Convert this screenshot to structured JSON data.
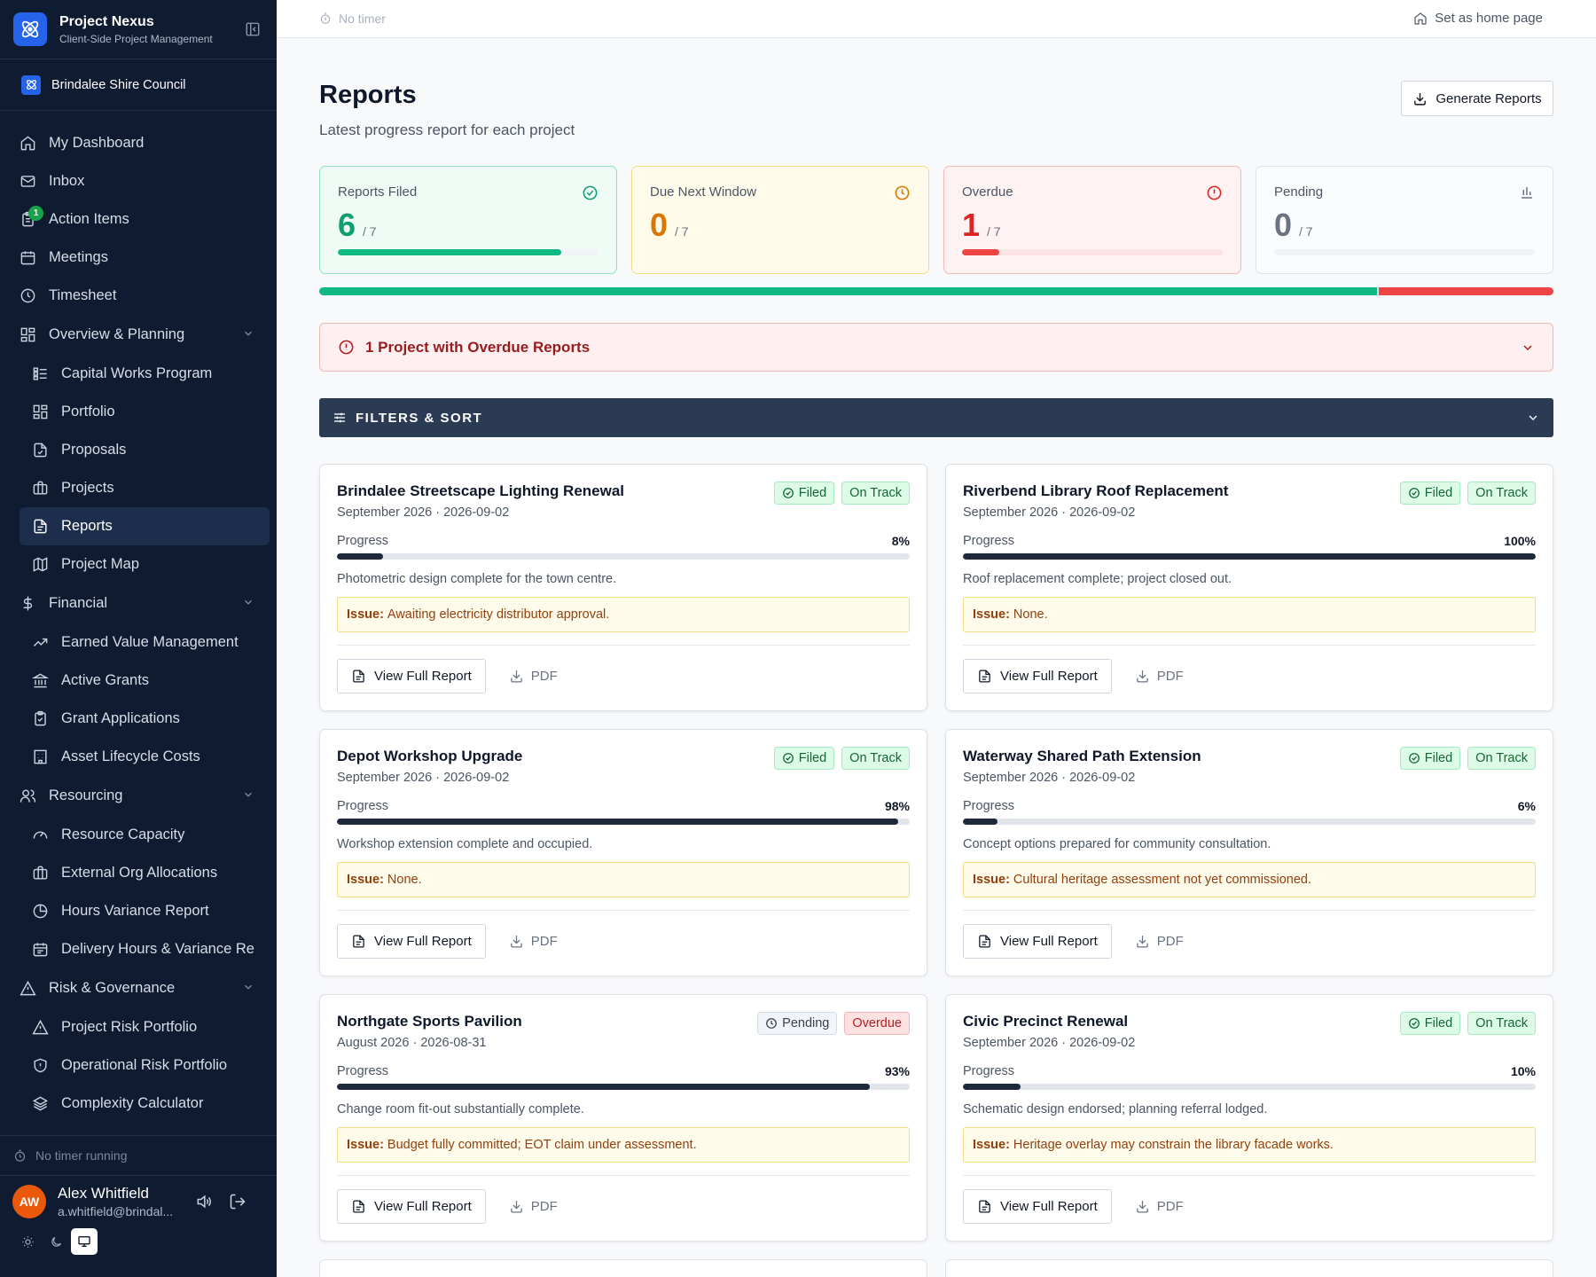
{
  "brand": {
    "title": "Project Nexus",
    "subtitle": "Client-Side Project Management"
  },
  "org": {
    "name": "Brindalee Shire Council"
  },
  "nav": {
    "dashboard": "My Dashboard",
    "inbox": "Inbox",
    "action_items": "Action Items",
    "action_items_badge": "1",
    "meetings": "Meetings",
    "timesheet": "Timesheet",
    "overview": "Overview & Planning",
    "capital_works": "Capital Works Program",
    "portfolio": "Portfolio",
    "proposals": "Proposals",
    "projects": "Projects",
    "reports": "Reports",
    "project_map": "Project Map",
    "financial": "Financial",
    "evm": "Earned Value Management",
    "active_grants": "Active Grants",
    "grant_applications": "Grant Applications",
    "asset_lifecycle": "Asset Lifecycle Costs",
    "resourcing": "Resourcing",
    "resource_capacity": "Resource Capacity",
    "external_org": "External Org Allocations",
    "hours_variance": "Hours Variance Report",
    "delivery_hours": "Delivery Hours & Variance Re",
    "risk": "Risk & Governance",
    "project_risk": "Project Risk Portfolio",
    "operational_risk": "Operational Risk Portfolio",
    "complexity": "Complexity Calculator"
  },
  "sidebar_footer": {
    "timer": "No timer running",
    "user_initials": "AW",
    "user_name": "Alex Whitfield",
    "user_email": "a.whitfield@brindal..."
  },
  "topbar": {
    "timer": "No timer",
    "home_link": "Set as home page"
  },
  "page": {
    "title": "Reports",
    "subtitle": "Latest progress report for each project",
    "generate_button": "Generate Reports"
  },
  "stats": [
    {
      "label": "Reports Filed",
      "value": "6",
      "of": "/ 7",
      "fraction": 0.857,
      "color": "#10b981",
      "text_color": "#0f9f6e",
      "icon": "check-circle-icon"
    },
    {
      "label": "Due Next Window",
      "value": "0",
      "of": "/ 7",
      "fraction": 0,
      "color": "#f59e0b",
      "text_color": "#d97706",
      "icon": "clock-icon"
    },
    {
      "label": "Overdue",
      "value": "1",
      "of": "/ 7",
      "fraction": 0.143,
      "color": "#ef4444",
      "text_color": "#dc2626",
      "icon": "alert-circle-icon"
    },
    {
      "label": "Pending",
      "value": "0",
      "of": "/ 7",
      "fraction": 0,
      "color": "#94a3b8",
      "text_color": "#6b7280",
      "icon": "bar-chart-icon"
    }
  ],
  "summary_bar": {
    "filed_fraction": 0.857,
    "overdue_fraction": 0.143,
    "filed_color": "#10b981",
    "overdue_color": "#ef4444"
  },
  "alert": {
    "text": "1 Project with Overdue Reports"
  },
  "filters": {
    "label": "FILTERS & SORT"
  },
  "card_labels": {
    "progress": "Progress",
    "issue": "Issue:",
    "view": "View Full Report",
    "pdf": "PDF"
  },
  "reports": [
    {
      "title": "Brindalee Streetscape Lighting Renewal",
      "date": "September 2026 · 2026-09-02",
      "status": "Filed",
      "track": "On Track",
      "progress": "8%",
      "progress_value": 8,
      "summary": "Photometric design complete for the town centre.",
      "issue": "Awaiting electricity distributor approval."
    },
    {
      "title": "Riverbend Library Roof Replacement",
      "date": "September 2026 · 2026-09-02",
      "status": "Filed",
      "track": "On Track",
      "progress": "100%",
      "progress_value": 100,
      "summary": "Roof replacement complete; project closed out.",
      "issue": "None."
    },
    {
      "title": "Depot Workshop Upgrade",
      "date": "September 2026 · 2026-09-02",
      "status": "Filed",
      "track": "On Track",
      "progress": "98%",
      "progress_value": 98,
      "summary": "Workshop extension complete and occupied.",
      "issue": "None."
    },
    {
      "title": "Waterway Shared Path Extension",
      "date": "September 2026 · 2026-09-02",
      "status": "Filed",
      "track": "On Track",
      "progress": "6%",
      "progress_value": 6,
      "summary": "Concept options prepared for community consultation.",
      "issue": "Cultural heritage assessment not yet commissioned."
    },
    {
      "title": "Northgate Sports Pavilion",
      "date": "August 2026 · 2026-08-31",
      "status": "Pending",
      "track": "Overdue",
      "progress": "93%",
      "progress_value": 93,
      "summary": "Change room fit-out substantially complete.",
      "issue": "Budget fully committed; EOT claim under assessment."
    },
    {
      "title": "Civic Precinct Renewal",
      "date": "September 2026 · 2026-09-02",
      "status": "Filed",
      "track": "On Track",
      "progress": "10%",
      "progress_value": 10,
      "summary": "Schematic design endorsed; planning referral lodged.",
      "issue": "Heritage overlay may constrain the library facade works."
    }
  ]
}
